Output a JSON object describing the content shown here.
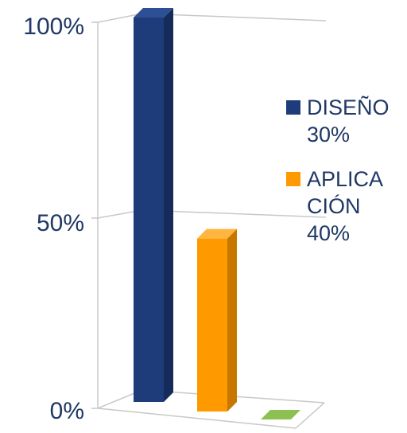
{
  "chart_data": {
    "type": "bar",
    "style": "3d-column",
    "y_ticks": [
      "100%",
      "50%",
      "0%"
    ],
    "ylim": [
      0,
      100
    ],
    "grid": true,
    "legend_position": "right",
    "series": [
      {
        "label_lines": [
          "DISEÑO",
          "30%"
        ],
        "value": 100,
        "color": "#1f3c7a",
        "color_side": "#152c5a",
        "color_top": "#2d4f96",
        "in_legend": true
      },
      {
        "label_lines": [
          "APLICA",
          "CIÓN",
          "40%"
        ],
        "value": 45,
        "color": "#ff9900",
        "color_side": "#c77700",
        "color_top": "#ffb640",
        "in_legend": true
      },
      {
        "label_lines": [],
        "value": 1,
        "color": "#70a83a",
        "color_side": "#4f7d27",
        "color_top": "#8cc152",
        "in_legend": false
      }
    ]
  }
}
